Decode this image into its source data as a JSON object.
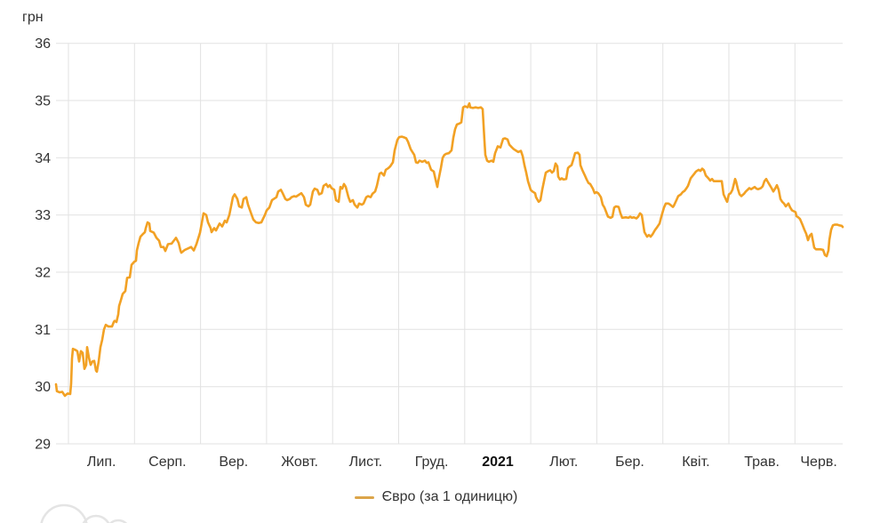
{
  "chart_data": {
    "type": "line",
    "title": "",
    "ylabel": "грн",
    "xlabel": "",
    "legend": "Євро (за 1 одиницю)",
    "line_color": "#F2A124",
    "legend_color": "#DCA54A",
    "grid_color": "#E2E2E2",
    "text_color": "#333333",
    "bold_tick_color": "#111111",
    "background": "#FFFFFF",
    "ylim": [
      29,
      36
    ],
    "y_ticks": [
      36,
      35,
      34,
      33,
      32,
      31,
      30,
      29
    ],
    "x_tick_labels": [
      "Лип.",
      "Серп.",
      "Вер.",
      "Жовт.",
      "Лист.",
      "Груд.",
      "2021",
      "Лют.",
      "Бер.",
      "Квіт.",
      "Трав.",
      "Черв."
    ],
    "x_tick_bold": "2021",
    "x_domain": [
      0,
      885
    ],
    "month_gridlines": [
      14,
      88.3,
      162.6,
      236.9,
      311.2,
      385.5,
      459.8,
      534.1,
      608.4,
      682.7,
      757.0,
      831.3
    ],
    "points": [
      [
        0,
        30.04
      ],
      [
        1,
        29.92
      ],
      [
        4,
        29.9
      ],
      [
        7,
        29.91
      ],
      [
        10,
        29.84
      ],
      [
        13,
        29.88
      ],
      [
        16,
        29.87
      ],
      [
        17,
        30.05
      ],
      [
        18,
        30.49
      ],
      [
        19,
        30.66
      ],
      [
        22,
        30.64
      ],
      [
        24,
        30.62
      ],
      [
        26,
        30.44
      ],
      [
        28,
        30.62
      ],
      [
        30,
        30.59
      ],
      [
        32,
        30.31
      ],
      [
        34,
        30.38
      ],
      [
        35,
        30.69
      ],
      [
        37,
        30.51
      ],
      [
        39,
        30.38
      ],
      [
        41,
        30.44
      ],
      [
        43,
        30.45
      ],
      [
        45,
        30.28
      ],
      [
        46,
        30.26
      ],
      [
        48,
        30.44
      ],
      [
        50,
        30.69
      ],
      [
        52,
        30.82
      ],
      [
        54,
        31.0
      ],
      [
        56,
        31.08
      ],
      [
        59,
        31.05
      ],
      [
        63,
        31.05
      ],
      [
        65,
        31.13
      ],
      [
        66,
        31.15
      ],
      [
        68,
        31.13
      ],
      [
        70,
        31.26
      ],
      [
        71,
        31.41
      ],
      [
        73,
        31.51
      ],
      [
        75,
        31.62
      ],
      [
        78,
        31.67
      ],
      [
        80,
        31.9
      ],
      [
        83,
        31.91
      ],
      [
        85,
        32.13
      ],
      [
        88,
        32.18
      ],
      [
        90,
        32.2
      ],
      [
        91,
        32.38
      ],
      [
        93,
        32.51
      ],
      [
        95,
        32.62
      ],
      [
        98,
        32.67
      ],
      [
        100,
        32.7
      ],
      [
        101,
        32.77
      ],
      [
        103,
        32.87
      ],
      [
        105,
        32.85
      ],
      [
        106,
        32.72
      ],
      [
        110,
        32.69
      ],
      [
        113,
        32.6
      ],
      [
        116,
        32.55
      ],
      [
        118,
        32.44
      ],
      [
        121,
        32.44
      ],
      [
        123,
        32.37
      ],
      [
        126,
        32.49
      ],
      [
        130,
        32.5
      ],
      [
        133,
        32.56
      ],
      [
        135,
        32.6
      ],
      [
        138,
        32.51
      ],
      [
        140,
        32.38
      ],
      [
        141,
        32.34
      ],
      [
        145,
        32.39
      ],
      [
        148,
        32.41
      ],
      [
        152,
        32.44
      ],
      [
        155,
        32.38
      ],
      [
        158,
        32.49
      ],
      [
        162,
        32.69
      ],
      [
        166,
        33.03
      ],
      [
        169,
        33.0
      ],
      [
        171,
        32.87
      ],
      [
        174,
        32.77
      ],
      [
        175,
        32.7
      ],
      [
        178,
        32.77
      ],
      [
        180,
        32.73
      ],
      [
        184,
        32.85
      ],
      [
        187,
        32.8
      ],
      [
        190,
        32.9
      ],
      [
        192,
        32.87
      ],
      [
        195,
        33.0
      ],
      [
        199,
        33.31
      ],
      [
        201,
        33.36
      ],
      [
        204,
        33.28
      ],
      [
        206,
        33.15
      ],
      [
        209,
        33.13
      ],
      [
        211,
        33.28
      ],
      [
        214,
        33.31
      ],
      [
        216,
        33.18
      ],
      [
        219,
        33.05
      ],
      [
        222,
        32.92
      ],
      [
        225,
        32.87
      ],
      [
        228,
        32.86
      ],
      [
        231,
        32.87
      ],
      [
        235,
        33.0
      ],
      [
        237,
        33.08
      ],
      [
        240,
        33.13
      ],
      [
        243,
        33.26
      ],
      [
        245,
        33.28
      ],
      [
        248,
        33.31
      ],
      [
        250,
        33.41
      ],
      [
        253,
        33.44
      ],
      [
        255,
        33.38
      ],
      [
        258,
        33.28
      ],
      [
        260,
        33.26
      ],
      [
        263,
        33.28
      ],
      [
        265,
        33.31
      ],
      [
        268,
        33.33
      ],
      [
        270,
        33.32
      ],
      [
        274,
        33.36
      ],
      [
        276,
        33.38
      ],
      [
        279,
        33.31
      ],
      [
        281,
        33.18
      ],
      [
        284,
        33.15
      ],
      [
        286,
        33.18
      ],
      [
        289,
        33.41
      ],
      [
        291,
        33.46
      ],
      [
        294,
        33.44
      ],
      [
        296,
        33.36
      ],
      [
        299,
        33.38
      ],
      [
        301,
        33.51
      ],
      [
        304,
        33.54
      ],
      [
        306,
        33.49
      ],
      [
        308,
        33.52
      ],
      [
        310,
        33.47
      ],
      [
        313,
        33.44
      ],
      [
        315,
        33.26
      ],
      [
        318,
        33.23
      ],
      [
        320,
        33.49
      ],
      [
        322,
        33.46
      ],
      [
        324,
        33.54
      ],
      [
        326,
        33.49
      ],
      [
        329,
        33.31
      ],
      [
        331,
        33.23
      ],
      [
        334,
        33.26
      ],
      [
        336,
        33.18
      ],
      [
        339,
        33.13
      ],
      [
        341,
        33.2
      ],
      [
        344,
        33.18
      ],
      [
        346,
        33.2
      ],
      [
        349,
        33.31
      ],
      [
        351,
        33.33
      ],
      [
        354,
        33.31
      ],
      [
        356,
        33.37
      ],
      [
        359,
        33.41
      ],
      [
        361,
        33.51
      ],
      [
        364,
        33.72
      ],
      [
        366,
        33.74
      ],
      [
        369,
        33.69
      ],
      [
        371,
        33.79
      ],
      [
        374,
        33.82
      ],
      [
        376,
        33.85
      ],
      [
        379,
        33.92
      ],
      [
        381,
        34.13
      ],
      [
        384,
        34.31
      ],
      [
        386,
        34.36
      ],
      [
        389,
        34.37
      ],
      [
        391,
        34.36
      ],
      [
        394,
        34.34
      ],
      [
        396,
        34.28
      ],
      [
        399,
        34.15
      ],
      [
        401,
        34.1
      ],
      [
        403,
        34.05
      ],
      [
        405,
        33.92
      ],
      [
        407,
        33.91
      ],
      [
        409,
        33.95
      ],
      [
        412,
        33.93
      ],
      [
        415,
        33.95
      ],
      [
        417,
        33.91
      ],
      [
        419,
        33.92
      ],
      [
        422,
        33.79
      ],
      [
        425,
        33.76
      ],
      [
        427,
        33.62
      ],
      [
        429,
        33.49
      ],
      [
        430,
        33.59
      ],
      [
        433,
        33.82
      ],
      [
        435,
        34.0
      ],
      [
        437,
        34.05
      ],
      [
        439,
        34.07
      ],
      [
        442,
        34.08
      ],
      [
        445,
        34.13
      ],
      [
        447,
        34.35
      ],
      [
        449,
        34.5
      ],
      [
        451,
        34.58
      ],
      [
        454,
        34.6
      ],
      [
        456,
        34.62
      ],
      [
        458,
        34.88
      ],
      [
        460,
        34.9
      ],
      [
        463,
        34.88
      ],
      [
        465,
        34.95
      ],
      [
        466,
        34.88
      ],
      [
        469,
        34.87
      ],
      [
        472,
        34.88
      ],
      [
        475,
        34.87
      ],
      [
        478,
        34.88
      ],
      [
        480,
        34.85
      ],
      [
        482,
        34.3
      ],
      [
        483,
        34.05
      ],
      [
        485,
        33.95
      ],
      [
        487,
        33.93
      ],
      [
        490,
        33.95
      ],
      [
        492,
        33.93
      ],
      [
        494,
        34.08
      ],
      [
        497,
        34.2
      ],
      [
        500,
        34.18
      ],
      [
        503,
        34.33
      ],
      [
        505,
        34.34
      ],
      [
        508,
        34.32
      ],
      [
        510,
        34.23
      ],
      [
        513,
        34.18
      ],
      [
        515,
        34.15
      ],
      [
        518,
        34.12
      ],
      [
        520,
        34.1
      ],
      [
        523,
        34.12
      ],
      [
        525,
        34.03
      ],
      [
        527,
        33.87
      ],
      [
        529,
        33.74
      ],
      [
        531,
        33.59
      ],
      [
        534,
        33.44
      ],
      [
        536,
        33.41
      ],
      [
        539,
        33.38
      ],
      [
        540,
        33.31
      ],
      [
        543,
        33.23
      ],
      [
        545,
        33.26
      ],
      [
        547,
        33.44
      ],
      [
        549,
        33.59
      ],
      [
        551,
        33.74
      ],
      [
        554,
        33.77
      ],
      [
        556,
        33.78
      ],
      [
        558,
        33.74
      ],
      [
        560,
        33.77
      ],
      [
        562,
        33.9
      ],
      [
        564,
        33.85
      ],
      [
        565,
        33.67
      ],
      [
        567,
        33.62
      ],
      [
        569,
        33.64
      ],
      [
        571,
        33.62
      ],
      [
        574,
        33.63
      ],
      [
        576,
        33.82
      ],
      [
        578,
        33.85
      ],
      [
        580,
        33.87
      ],
      [
        582,
        33.97
      ],
      [
        584,
        34.08
      ],
      [
        587,
        34.09
      ],
      [
        589,
        34.05
      ],
      [
        590,
        33.87
      ],
      [
        592,
        33.79
      ],
      [
        595,
        33.69
      ],
      [
        597,
        33.62
      ],
      [
        599,
        33.56
      ],
      [
        601,
        33.54
      ],
      [
        604,
        33.46
      ],
      [
        606,
        33.38
      ],
      [
        608,
        33.4
      ],
      [
        610,
        33.38
      ],
      [
        613,
        33.31
      ],
      [
        615,
        33.18
      ],
      [
        617,
        33.13
      ],
      [
        619,
        33.05
      ],
      [
        621,
        32.97
      ],
      [
        624,
        32.95
      ],
      [
        626,
        32.97
      ],
      [
        628,
        33.13
      ],
      [
        630,
        33.15
      ],
      [
        633,
        33.14
      ],
      [
        635,
        33.03
      ],
      [
        637,
        32.95
      ],
      [
        641,
        32.96
      ],
      [
        644,
        32.95
      ],
      [
        646,
        32.97
      ],
      [
        648,
        32.95
      ],
      [
        650,
        32.96
      ],
      [
        653,
        32.94
      ],
      [
        655,
        32.97
      ],
      [
        657,
        33.03
      ],
      [
        659,
        33.0
      ],
      [
        660,
        32.9
      ],
      [
        662,
        32.7
      ],
      [
        665,
        32.62
      ],
      [
        667,
        32.65
      ],
      [
        669,
        32.62
      ],
      [
        671,
        32.66
      ],
      [
        674,
        32.74
      ],
      [
        676,
        32.78
      ],
      [
        679,
        32.85
      ],
      [
        681,
        32.97
      ],
      [
        684,
        33.13
      ],
      [
        686,
        33.2
      ],
      [
        689,
        33.2
      ],
      [
        691,
        33.18
      ],
      [
        694,
        33.14
      ],
      [
        695,
        33.16
      ],
      [
        698,
        33.26
      ],
      [
        700,
        33.33
      ],
      [
        703,
        33.36
      ],
      [
        705,
        33.4
      ],
      [
        707,
        33.42
      ],
      [
        709,
        33.46
      ],
      [
        711,
        33.51
      ],
      [
        714,
        33.64
      ],
      [
        716,
        33.68
      ],
      [
        718,
        33.72
      ],
      [
        720,
        33.76
      ],
      [
        723,
        33.79
      ],
      [
        725,
        33.77
      ],
      [
        727,
        33.81
      ],
      [
        729,
        33.78
      ],
      [
        731,
        33.69
      ],
      [
        734,
        33.64
      ],
      [
        736,
        33.6
      ],
      [
        738,
        33.63
      ],
      [
        740,
        33.59
      ],
      [
        749,
        33.59
      ],
      [
        751,
        33.36
      ],
      [
        754,
        33.26
      ],
      [
        755,
        33.23
      ],
      [
        757,
        33.36
      ],
      [
        759,
        33.38
      ],
      [
        761,
        33.44
      ],
      [
        764,
        33.63
      ],
      [
        765,
        33.59
      ],
      [
        767,
        33.46
      ],
      [
        769,
        33.36
      ],
      [
        771,
        33.33
      ],
      [
        774,
        33.37
      ],
      [
        776,
        33.41
      ],
      [
        778,
        33.44
      ],
      [
        780,
        33.47
      ],
      [
        782,
        33.45
      ],
      [
        784,
        33.47
      ],
      [
        786,
        33.49
      ],
      [
        788,
        33.46
      ],
      [
        790,
        33.45
      ],
      [
        793,
        33.47
      ],
      [
        795,
        33.5
      ],
      [
        797,
        33.59
      ],
      [
        799,
        33.63
      ],
      [
        800,
        33.6
      ],
      [
        803,
        33.52
      ],
      [
        805,
        33.47
      ],
      [
        807,
        33.41
      ],
      [
        809,
        33.46
      ],
      [
        811,
        33.52
      ],
      [
        813,
        33.44
      ],
      [
        815,
        33.28
      ],
      [
        817,
        33.23
      ],
      [
        819,
        33.2
      ],
      [
        821,
        33.15
      ],
      [
        824,
        33.2
      ],
      [
        826,
        33.13
      ],
      [
        828,
        33.08
      ],
      [
        832,
        33.05
      ],
      [
        833,
        32.98
      ],
      [
        835,
        32.96
      ],
      [
        837,
        32.93
      ],
      [
        840,
        32.82
      ],
      [
        842,
        32.74
      ],
      [
        844,
        32.67
      ],
      [
        846,
        32.56
      ],
      [
        848,
        32.64
      ],
      [
        850,
        32.67
      ],
      [
        851,
        32.59
      ],
      [
        853,
        32.43
      ],
      [
        855,
        32.4
      ],
      [
        860,
        32.4
      ],
      [
        863,
        32.39
      ],
      [
        865,
        32.3
      ],
      [
        867,
        32.28
      ],
      [
        869,
        32.38
      ],
      [
        870,
        32.56
      ],
      [
        872,
        32.74
      ],
      [
        874,
        32.82
      ],
      [
        876,
        32.83
      ],
      [
        879,
        32.83
      ],
      [
        881,
        32.82
      ],
      [
        884,
        32.81
      ],
      [
        885,
        32.79
      ]
    ]
  }
}
